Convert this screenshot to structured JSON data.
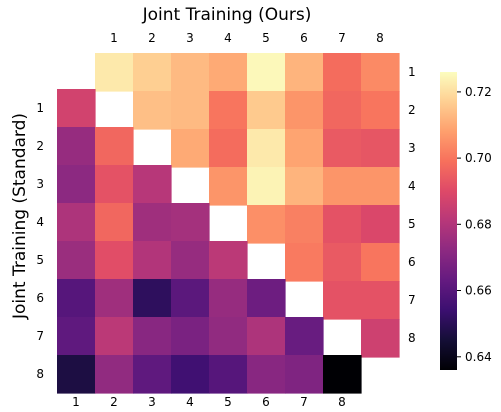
{
  "chart_data": {
    "type": "heatmap",
    "title": "Joint Training (Ours)",
    "ylabel": "Joint Training (Standard)",
    "top_ticks": [
      "1",
      "2",
      "3",
      "4",
      "5",
      "6",
      "7",
      "8"
    ],
    "bottom_ticks": [
      "1",
      "2",
      "3",
      "4",
      "5",
      "6",
      "7",
      "8"
    ],
    "left_ticks": [
      "1",
      "2",
      "3",
      "4",
      "5",
      "6",
      "7",
      "8"
    ],
    "right_ticks": [
      "1",
      "2",
      "3",
      "4",
      "5",
      "6",
      "7",
      "8"
    ],
    "colorbar": {
      "vmin": 0.636,
      "vmax": 0.726,
      "ticks": [
        0.64,
        0.66,
        0.68,
        0.7,
        0.72
      ],
      "tick_labels": [
        "0.64",
        "0.66",
        "0.68",
        "0.70",
        "0.72"
      ],
      "colormap": "magma"
    },
    "upper_triangle_note": "rows 0..7 (right labels 1..8), cols 0..7 (top labels 1..8); null = blank",
    "upper": [
      [
        0.722,
        0.717,
        0.713,
        0.71,
        0.725,
        0.712,
        0.698,
        0.704
      ],
      [
        null,
        0.714,
        0.713,
        0.7,
        0.716,
        0.706,
        0.697,
        0.7
      ],
      [
        null,
        null,
        0.71,
        0.698,
        0.722,
        0.709,
        0.694,
        0.693
      ],
      [
        null,
        null,
        null,
        0.706,
        0.724,
        0.712,
        0.706,
        0.706
      ],
      [
        null,
        null,
        null,
        null,
        0.705,
        0.702,
        0.692,
        0.689
      ],
      [
        null,
        null,
        null,
        null,
        null,
        0.701,
        0.694,
        0.7
      ],
      [
        null,
        null,
        null,
        null,
        null,
        null,
        0.692,
        0.692
      ],
      [
        null,
        null,
        null,
        null,
        null,
        null,
        null,
        0.686
      ]
    ],
    "lower_triangle_note": "rows 0..7 (left labels 1..8), cols 0..7 (bottom labels 1..8); null = blank",
    "lower": [
      [
        0.687,
        null,
        null,
        null,
        null,
        null,
        null,
        null
      ],
      [
        0.674,
        0.697,
        null,
        null,
        null,
        null,
        null,
        null
      ],
      [
        0.672,
        0.692,
        0.681,
        null,
        null,
        null,
        null,
        null
      ],
      [
        0.679,
        0.697,
        0.676,
        0.677,
        null,
        null,
        null,
        null
      ],
      [
        0.675,
        0.691,
        0.68,
        0.674,
        0.682,
        null,
        null,
        null
      ],
      [
        0.66,
        0.676,
        0.651,
        0.661,
        0.674,
        0.665,
        null,
        null
      ],
      [
        0.662,
        0.682,
        0.671,
        0.668,
        0.673,
        0.679,
        0.664,
        null
      ],
      [
        0.647,
        0.673,
        0.662,
        0.655,
        0.66,
        0.671,
        0.669,
        0.636
      ]
    ]
  }
}
